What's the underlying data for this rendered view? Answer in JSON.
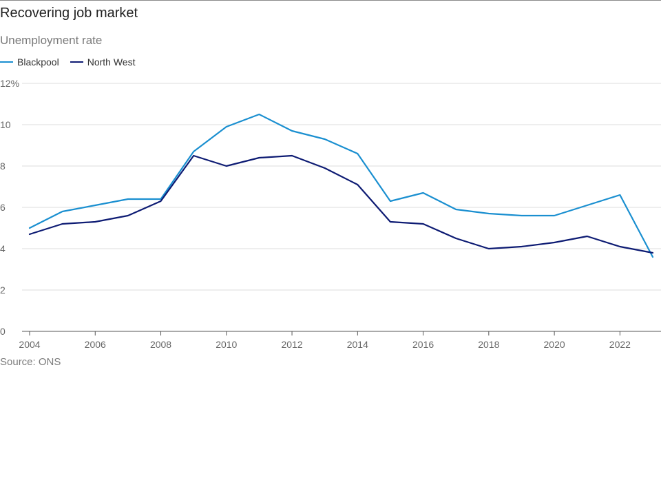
{
  "header": {
    "title": "Recovering job market",
    "subtitle": "Unemployment rate"
  },
  "legend": {
    "items": [
      {
        "label": "Blackpool",
        "color": "#1a8fd0"
      },
      {
        "label": "North West",
        "color": "#0d1b73"
      }
    ]
  },
  "footer": {
    "source": "Source: ONS"
  },
  "chart_data": {
    "type": "line",
    "title": "Recovering job market",
    "subtitle": "Unemployment rate",
    "xlabel": "",
    "ylabel": "",
    "x": [
      2004,
      2005,
      2006,
      2007,
      2008,
      2009,
      2010,
      2011,
      2012,
      2013,
      2014,
      2015,
      2016,
      2017,
      2018,
      2019,
      2020,
      2021,
      2022,
      2023
    ],
    "xlim": [
      2004,
      2023
    ],
    "ylim": [
      0,
      12
    ],
    "x_ticks": [
      "2004",
      "2006",
      "2008",
      "2010",
      "2012",
      "2014",
      "2016",
      "2018",
      "2020",
      "2022"
    ],
    "y_ticks": [
      "0",
      "2",
      "4",
      "6",
      "8",
      "10",
      "12%"
    ],
    "grid": "horizontal",
    "legend_position": "top-left",
    "series": [
      {
        "name": "Blackpool",
        "color": "#1a8fd0",
        "values": [
          5.0,
          5.8,
          6.1,
          6.4,
          6.4,
          8.7,
          9.9,
          10.5,
          9.7,
          9.3,
          8.6,
          6.3,
          6.7,
          5.9,
          5.7,
          5.6,
          5.6,
          6.1,
          6.6,
          3.6
        ]
      },
      {
        "name": "North West",
        "color": "#0d1b73",
        "values": [
          4.7,
          5.2,
          5.3,
          5.6,
          6.3,
          8.5,
          8.0,
          8.4,
          8.5,
          7.9,
          7.1,
          5.3,
          5.2,
          4.5,
          4.0,
          4.1,
          4.3,
          4.6,
          4.1,
          3.8
        ]
      }
    ]
  }
}
